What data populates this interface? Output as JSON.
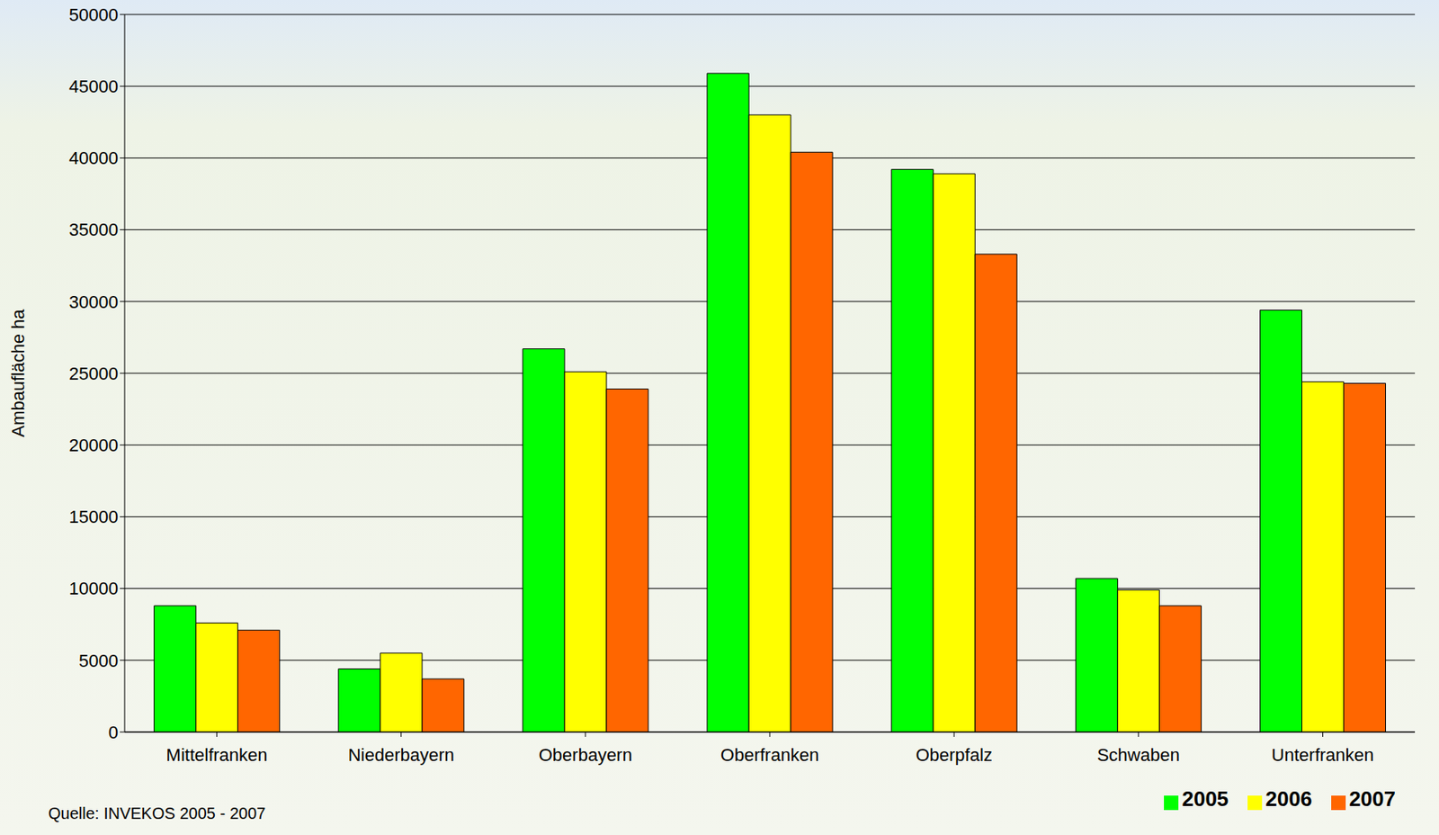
{
  "chart_data": {
    "type": "bar",
    "y_label": "Ambaufläche ha",
    "source": "Quelle: INVEKOS 2005 - 2007",
    "categories": [
      "Mittelfranken",
      "Niederbayern",
      "Oberbayern",
      "Oberfranken",
      "Oberpfalz",
      "Schwaben",
      "Unterfranken"
    ],
    "series": [
      {
        "name": "2005",
        "color": "#00ff00",
        "values": [
          8800,
          4400,
          26700,
          45900,
          39200,
          10700,
          29400
        ]
      },
      {
        "name": "2006",
        "color": "#ffff00",
        "values": [
          7600,
          5500,
          25100,
          43000,
          38900,
          9900,
          24400
        ]
      },
      {
        "name": "2007",
        "color": "#ff6600",
        "values": [
          7100,
          3700,
          23900,
          40400,
          33300,
          8800,
          24300
        ]
      }
    ],
    "ylim": [
      0,
      50000
    ],
    "yticks": [
      0,
      5000,
      10000,
      15000,
      20000,
      25000,
      30000,
      35000,
      40000,
      45000,
      50000
    ],
    "grid": true,
    "legend": "lower right"
  }
}
